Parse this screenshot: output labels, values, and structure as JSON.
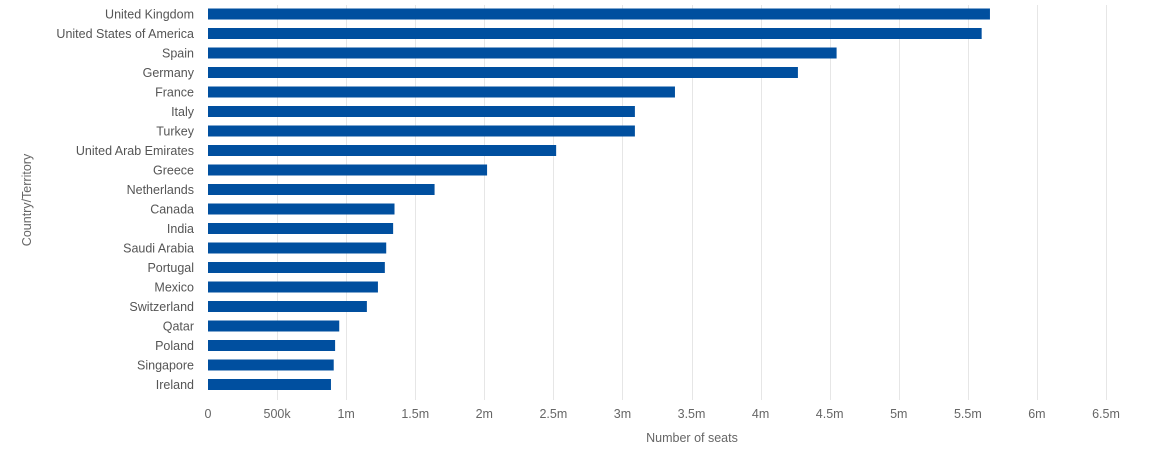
{
  "chart_data": {
    "type": "bar",
    "orientation": "horizontal",
    "title": "",
    "xlabel": "Number of seats",
    "ylabel": "Country/Territory",
    "categories": [
      "United Kingdom",
      "United States of America",
      "Spain",
      "Germany",
      "France",
      "Italy",
      "Turkey",
      "United Arab Emirates",
      "Greece",
      "Netherlands",
      "Canada",
      "India",
      "Saudi Arabia",
      "Portugal",
      "Mexico",
      "Switzerland",
      "Qatar",
      "Poland",
      "Singapore",
      "Ireland"
    ],
    "values": [
      5660000,
      5600000,
      4550000,
      4270000,
      3380000,
      3090000,
      3090000,
      2520000,
      2020000,
      1640000,
      1350000,
      1340000,
      1290000,
      1280000,
      1230000,
      1150000,
      950000,
      920000,
      910000,
      890000
    ],
    "xlim": [
      0,
      6500000
    ],
    "xticks": [
      0,
      500000,
      1000000,
      1500000,
      2000000,
      2500000,
      3000000,
      3500000,
      4000000,
      4500000,
      5000000,
      5500000,
      6000000,
      6500000
    ],
    "xtick_labels": [
      "0",
      "500k",
      "1m",
      "1.5m",
      "2m",
      "2.5m",
      "3m",
      "3.5m",
      "4m",
      "4.5m",
      "5m",
      "5.5m",
      "6m",
      "6.5m"
    ],
    "grid": "vertical",
    "legend": "none",
    "bar_color": "#004f9f",
    "grid_color": "#e6e6e6"
  }
}
